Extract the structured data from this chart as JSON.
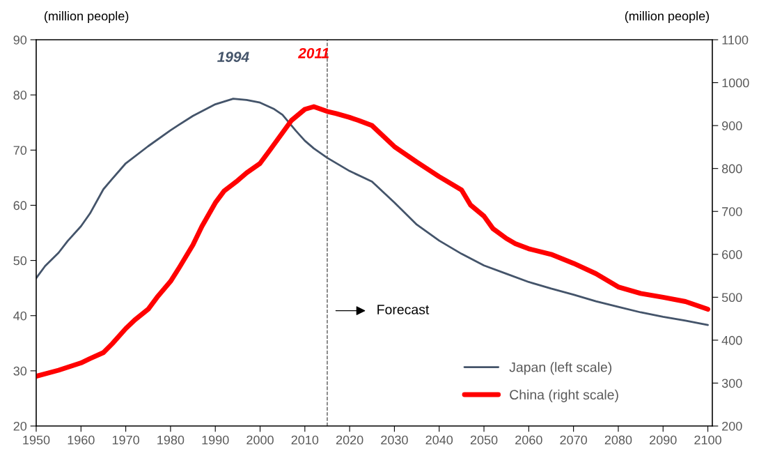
{
  "chart_data": {
    "type": "line",
    "ylabel": "(million people)",
    "y2label": "(million people)",
    "series": [
      {
        "name": "Japan (left scale)",
        "color": "#44546a",
        "x": [
          1950,
          1952,
          1955,
          1957,
          1960,
          1962,
          1965,
          1967,
          1970,
          1975,
          1980,
          1985,
          1990,
          1994,
          1997,
          2000,
          2003,
          2005,
          2008,
          2010,
          2012,
          2015,
          2020,
          2025,
          2030,
          2035,
          2040,
          2045,
          2050,
          2055,
          2060,
          2065,
          2070,
          2075,
          2080,
          2085,
          2090,
          2095,
          2100
        ],
        "values": [
          46.8,
          49.0,
          51.4,
          53.5,
          56.2,
          58.5,
          62.9,
          64.8,
          67.6,
          70.7,
          73.6,
          76.2,
          78.3,
          79.3,
          79.1,
          78.6,
          77.5,
          76.4,
          73.5,
          71.7,
          70.3,
          68.6,
          66.2,
          64.3,
          60.5,
          56.5,
          53.6,
          51.2,
          49.1,
          47.6,
          46.1,
          44.9,
          43.8,
          42.6,
          41.6,
          40.6,
          39.8,
          39.1,
          38.3
        ]
      },
      {
        "name": "China (right scale)",
        "color": "#ff0000",
        "axis": "y2",
        "x": [
          1950,
          1955,
          1960,
          1962,
          1965,
          1967,
          1970,
          1972,
          1975,
          1977,
          1980,
          1982,
          1985,
          1987,
          1990,
          1992,
          1995,
          1997,
          2000,
          2002,
          2005,
          2007,
          2010,
          2012,
          2015,
          2017,
          2020,
          2022,
          2025,
          2030,
          2035,
          2040,
          2045,
          2047,
          2050,
          2052,
          2055,
          2057,
          2060,
          2065,
          2070,
          2075,
          2080,
          2085,
          2090,
          2095,
          2100
        ],
        "values": [
          316,
          330,
          347,
          357,
          371,
          392,
          427,
          447,
          472,
          500,
          537,
          570,
          622,
          665,
          720,
          748,
          772,
          790,
          812,
          840,
          883,
          912,
          938,
          944,
          933,
          928,
          919,
          912,
          900,
          851,
          815,
          781,
          750,
          715,
          689,
          660,
          637,
          625,
          613,
          600,
          579,
          555,
          524,
          509,
          500,
          490,
          472
        ]
      }
    ],
    "xlim": [
      1950,
      2101
    ],
    "xticks": [
      1950,
      1960,
      1970,
      1980,
      1990,
      2000,
      2010,
      2020,
      2030,
      2040,
      2050,
      2060,
      2070,
      2080,
      2090,
      2100
    ],
    "ylim": [
      20,
      90
    ],
    "yticks": [
      20,
      30,
      40,
      50,
      60,
      70,
      80,
      90
    ],
    "y2lim": [
      200,
      1100
    ],
    "y2ticks": [
      200,
      300,
      400,
      500,
      600,
      700,
      800,
      900,
      1000,
      1100
    ],
    "ref_lines": [
      {
        "axis": "x",
        "value": 2015,
        "color": "#595959",
        "line_style": "dashed"
      }
    ],
    "annotations": [
      "1994",
      "2011",
      "Forecast"
    ],
    "legend": "bottom right",
    "grid": false,
    "marker": "none",
    "line_style": "solid"
  }
}
